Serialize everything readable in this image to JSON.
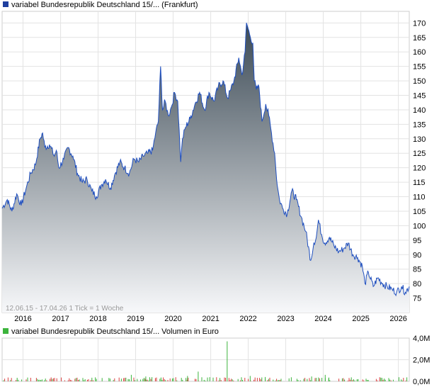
{
  "colors": {
    "price_line": "#1f4fbf",
    "area_top": "#3c4a55",
    "area_bottom": "#f7f8fa",
    "grid": "#e3e3e3",
    "volume_up": "#3cb43c",
    "volume_down": "#d94040",
    "legend_price": "#1f3f9f",
    "legend_volume": "#3cb43c"
  },
  "chart_data": [
    {
      "type": "area",
      "legend": "variabel Bundesrepublik Deutschland 15/... (Frankfurt)",
      "info_text": "12.06.15 - 17.04.26   1 Tick = 1 Woche",
      "ylim": [
        70,
        174
      ],
      "y_ticks": [
        75,
        80,
        85,
        90,
        95,
        100,
        105,
        110,
        115,
        120,
        125,
        130,
        135,
        140,
        145,
        150,
        155,
        160,
        165,
        170
      ],
      "xlim": [
        "2015-06-12",
        "2026-04-17"
      ],
      "x_ticks": [
        "2016",
        "2017",
        "2018",
        "2019",
        "2020",
        "2021",
        "2022",
        "2023",
        "2024",
        "2025",
        "2026"
      ],
      "series": [
        {
          "x": [
            "2015-06-12",
            "2015-08-01",
            "2015-09-15",
            "2015-11-01",
            "2015-12-15",
            "2016-02-01",
            "2016-03-15",
            "2016-05-01",
            "2016-06-15",
            "2016-07-10",
            "2016-08-01",
            "2016-09-15",
            "2016-11-01",
            "2016-11-20",
            "2016-12-15",
            "2017-02-01",
            "2017-03-15",
            "2017-05-01",
            "2017-06-15",
            "2017-08-01",
            "2017-09-15",
            "2017-11-01",
            "2017-12-15",
            "2018-02-01",
            "2018-03-15",
            "2018-05-01",
            "2018-06-15",
            "2018-08-01",
            "2018-09-15",
            "2018-11-01",
            "2018-12-15",
            "2019-02-01",
            "2019-03-15",
            "2019-05-01",
            "2019-06-15",
            "2019-07-15",
            "2019-08-10",
            "2019-09-01",
            "2019-09-20",
            "2019-10-15",
            "2019-11-15",
            "2019-12-15",
            "2020-01-15",
            "2020-02-15",
            "2020-03-15",
            "2020-04-01",
            "2020-05-01",
            "2020-06-15",
            "2020-08-01",
            "2020-09-15",
            "2020-11-01",
            "2020-12-15",
            "2021-02-01",
            "2021-03-15",
            "2021-05-01",
            "2021-06-15",
            "2021-07-15",
            "2021-08-15",
            "2021-10-01",
            "2021-11-01",
            "2021-12-01",
            "2021-12-15",
            "2022-01-15",
            "2022-02-15",
            "2022-03-01",
            "2022-03-20",
            "2022-04-15",
            "2022-05-15",
            "2022-06-20",
            "2022-07-20",
            "2022-08-15",
            "2022-09-15",
            "2022-10-10",
            "2022-11-01",
            "2022-12-01",
            "2023-01-15",
            "2023-03-01",
            "2023-04-15",
            "2023-06-01",
            "2023-07-15",
            "2023-09-01",
            "2023-10-01",
            "2023-10-25",
            "2023-11-15",
            "2023-12-15",
            "2024-01-15",
            "2024-03-01",
            "2024-04-15",
            "2024-06-01",
            "2024-07-15",
            "2024-09-01",
            "2024-10-15",
            "2024-12-01",
            "2025-01-15",
            "2025-02-10",
            "2025-03-15",
            "2025-05-01",
            "2025-06-15",
            "2025-08-01",
            "2025-09-15",
            "2025-11-01",
            "2025-12-15",
            "2026-02-01",
            "2026-03-10",
            "2026-04-17"
          ],
          "y": [
            106,
            109,
            105,
            111,
            107,
            113,
            118,
            121,
            130,
            132,
            127,
            128,
            124,
            126,
            120,
            123,
            127,
            124,
            118,
            115,
            116,
            112,
            110,
            114,
            116,
            113,
            118,
            122,
            120,
            118,
            123,
            122,
            124,
            125,
            126,
            132,
            136,
            155,
            140,
            143,
            138,
            141,
            146,
            143,
            122,
            130,
            134,
            137,
            142,
            146,
            140,
            146,
            143,
            148,
            150,
            144,
            147,
            150,
            158,
            152,
            160,
            170,
            166,
            163,
            150,
            147,
            148,
            136,
            142,
            138,
            132,
            125,
            114,
            109,
            106,
            104,
            112,
            109,
            103,
            98,
            88,
            94,
            96,
            102,
            97,
            94,
            96,
            93,
            91,
            92,
            94,
            90,
            89,
            86,
            80,
            84,
            79,
            82,
            80,
            79,
            78,
            77,
            79,
            77,
            79
          ]
        }
      ]
    },
    {
      "type": "bar",
      "legend": "variabel Bundesrepublik Deutschland 15/... Volumen in Euro",
      "ylim": [
        0,
        4.0
      ],
      "y_ticks": [
        "0,0M",
        "2,0M",
        "4,0M"
      ],
      "xlim": [
        "2015-06-12",
        "2026-04-17"
      ],
      "spikes": [
        {
          "x": "2016-02-15",
          "value": 0.35
        },
        {
          "x": "2018-11-20",
          "value": 0.6
        },
        {
          "x": "2019-04-10",
          "value": 0.45
        },
        {
          "x": "2020-05-20",
          "value": 0.5
        },
        {
          "x": "2020-09-01",
          "value": 0.9
        },
        {
          "x": "2021-06-10",
          "value": 3.7
        },
        {
          "x": "2022-01-20",
          "value": 0.5
        },
        {
          "x": "2022-06-15",
          "value": 0.4
        },
        {
          "x": "2023-09-10",
          "value": 0.45
        },
        {
          "x": "2024-01-20",
          "value": 0.6
        },
        {
          "x": "2024-02-25",
          "value": 0.35
        }
      ]
    }
  ]
}
